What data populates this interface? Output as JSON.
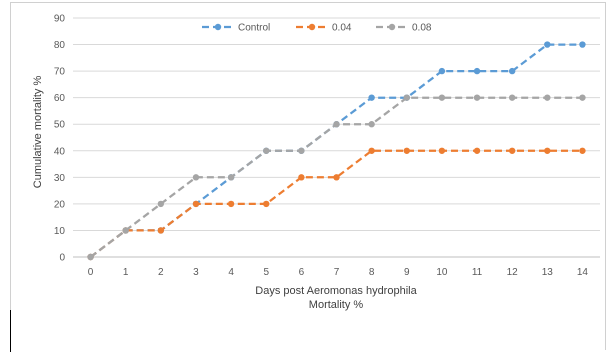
{
  "chart_data": {
    "type": "line",
    "xlabel": "Days post Aeromonas hydrophila",
    "xlabel2": "Mortality %",
    "ylabel": "Cumulative mortality %",
    "x": [
      0,
      1,
      2,
      3,
      4,
      5,
      6,
      7,
      8,
      9,
      10,
      11,
      12,
      13,
      14
    ],
    "xticks": [
      "0",
      "1",
      "2",
      "3",
      "4",
      "5",
      "6",
      "7",
      "8",
      "9",
      "10",
      "11",
      "12",
      "13",
      "14"
    ],
    "ylim": [
      0,
      90
    ],
    "yticks": [
      "0",
      "10",
      "20",
      "30",
      "40",
      "50",
      "60",
      "70",
      "80",
      "90"
    ],
    "legend_position": "top-center",
    "series": [
      {
        "name": "Control",
        "color": "#5b9bd5",
        "values": [
          0,
          10,
          10,
          20,
          30,
          40,
          40,
          50,
          60,
          60,
          70,
          70,
          70,
          80,
          80
        ]
      },
      {
        "name": "0.04",
        "color": "#ed7d31",
        "values": [
          0,
          10,
          10,
          20,
          20,
          20,
          30,
          30,
          40,
          40,
          40,
          40,
          40,
          40,
          40
        ]
      },
      {
        "name": "0.08",
        "color": "#a5a5a5",
        "values": [
          0,
          10,
          20,
          30,
          30,
          40,
          40,
          50,
          50,
          60,
          60,
          60,
          60,
          60,
          60
        ]
      }
    ]
  }
}
